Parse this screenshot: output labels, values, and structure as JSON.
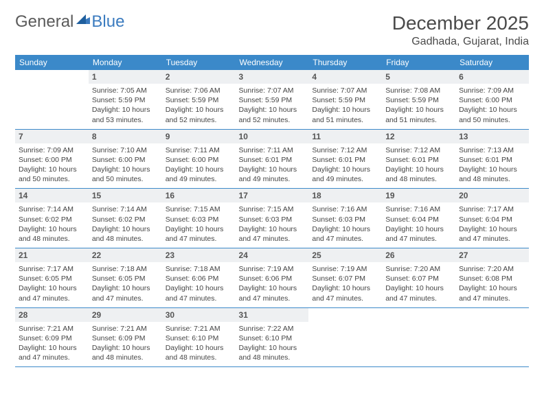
{
  "brand": {
    "part1": "General",
    "part2": "Blue"
  },
  "title": "December 2025",
  "location": "Gadhada, Gujarat, India",
  "colors": {
    "header_bg": "#3b89c9",
    "header_text": "#ffffff",
    "daynum_bg": "#eef0f2",
    "row_border": "#3b89c9",
    "logo_blue": "#3b7bbf",
    "logo_gray": "#5a5a5a",
    "page_bg": "#ffffff"
  },
  "weekdays": [
    "Sunday",
    "Monday",
    "Tuesday",
    "Wednesday",
    "Thursday",
    "Friday",
    "Saturday"
  ],
  "layout": {
    "first_weekday_index": 1,
    "days_in_month": 31,
    "weeks": 5
  },
  "days": {
    "1": {
      "sunrise": "7:05 AM",
      "sunset": "5:59 PM",
      "daylight": "10 hours and 53 minutes."
    },
    "2": {
      "sunrise": "7:06 AM",
      "sunset": "5:59 PM",
      "daylight": "10 hours and 52 minutes."
    },
    "3": {
      "sunrise": "7:07 AM",
      "sunset": "5:59 PM",
      "daylight": "10 hours and 52 minutes."
    },
    "4": {
      "sunrise": "7:07 AM",
      "sunset": "5:59 PM",
      "daylight": "10 hours and 51 minutes."
    },
    "5": {
      "sunrise": "7:08 AM",
      "sunset": "5:59 PM",
      "daylight": "10 hours and 51 minutes."
    },
    "6": {
      "sunrise": "7:09 AM",
      "sunset": "6:00 PM",
      "daylight": "10 hours and 50 minutes."
    },
    "7": {
      "sunrise": "7:09 AM",
      "sunset": "6:00 PM",
      "daylight": "10 hours and 50 minutes."
    },
    "8": {
      "sunrise": "7:10 AM",
      "sunset": "6:00 PM",
      "daylight": "10 hours and 50 minutes."
    },
    "9": {
      "sunrise": "7:11 AM",
      "sunset": "6:00 PM",
      "daylight": "10 hours and 49 minutes."
    },
    "10": {
      "sunrise": "7:11 AM",
      "sunset": "6:01 PM",
      "daylight": "10 hours and 49 minutes."
    },
    "11": {
      "sunrise": "7:12 AM",
      "sunset": "6:01 PM",
      "daylight": "10 hours and 49 minutes."
    },
    "12": {
      "sunrise": "7:12 AM",
      "sunset": "6:01 PM",
      "daylight": "10 hours and 48 minutes."
    },
    "13": {
      "sunrise": "7:13 AM",
      "sunset": "6:01 PM",
      "daylight": "10 hours and 48 minutes."
    },
    "14": {
      "sunrise": "7:14 AM",
      "sunset": "6:02 PM",
      "daylight": "10 hours and 48 minutes."
    },
    "15": {
      "sunrise": "7:14 AM",
      "sunset": "6:02 PM",
      "daylight": "10 hours and 48 minutes."
    },
    "16": {
      "sunrise": "7:15 AM",
      "sunset": "6:03 PM",
      "daylight": "10 hours and 47 minutes."
    },
    "17": {
      "sunrise": "7:15 AM",
      "sunset": "6:03 PM",
      "daylight": "10 hours and 47 minutes."
    },
    "18": {
      "sunrise": "7:16 AM",
      "sunset": "6:03 PM",
      "daylight": "10 hours and 47 minutes."
    },
    "19": {
      "sunrise": "7:16 AM",
      "sunset": "6:04 PM",
      "daylight": "10 hours and 47 minutes."
    },
    "20": {
      "sunrise": "7:17 AM",
      "sunset": "6:04 PM",
      "daylight": "10 hours and 47 minutes."
    },
    "21": {
      "sunrise": "7:17 AM",
      "sunset": "6:05 PM",
      "daylight": "10 hours and 47 minutes."
    },
    "22": {
      "sunrise": "7:18 AM",
      "sunset": "6:05 PM",
      "daylight": "10 hours and 47 minutes."
    },
    "23": {
      "sunrise": "7:18 AM",
      "sunset": "6:06 PM",
      "daylight": "10 hours and 47 minutes."
    },
    "24": {
      "sunrise": "7:19 AM",
      "sunset": "6:06 PM",
      "daylight": "10 hours and 47 minutes."
    },
    "25": {
      "sunrise": "7:19 AM",
      "sunset": "6:07 PM",
      "daylight": "10 hours and 47 minutes."
    },
    "26": {
      "sunrise": "7:20 AM",
      "sunset": "6:07 PM",
      "daylight": "10 hours and 47 minutes."
    },
    "27": {
      "sunrise": "7:20 AM",
      "sunset": "6:08 PM",
      "daylight": "10 hours and 47 minutes."
    },
    "28": {
      "sunrise": "7:21 AM",
      "sunset": "6:09 PM",
      "daylight": "10 hours and 47 minutes."
    },
    "29": {
      "sunrise": "7:21 AM",
      "sunset": "6:09 PM",
      "daylight": "10 hours and 48 minutes."
    },
    "30": {
      "sunrise": "7:21 AM",
      "sunset": "6:10 PM",
      "daylight": "10 hours and 48 minutes."
    },
    "31": {
      "sunrise": "7:22 AM",
      "sunset": "6:10 PM",
      "daylight": "10 hours and 48 minutes."
    }
  },
  "labels": {
    "sunrise": "Sunrise:",
    "sunset": "Sunset:",
    "daylight": "Daylight:"
  }
}
